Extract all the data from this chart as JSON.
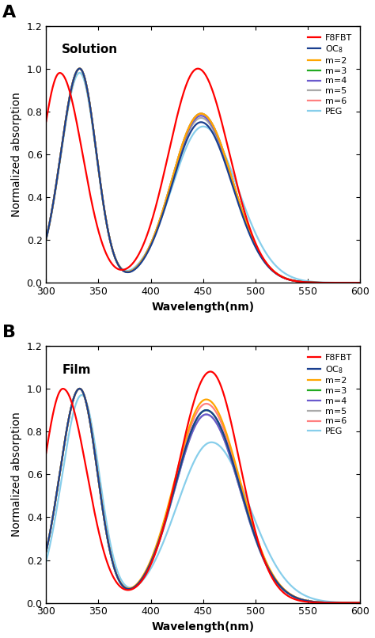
{
  "title_A": "Solution",
  "title_B": "Film",
  "label_A": "A",
  "label_B": "B",
  "xlabel": "Wavelength(nm)",
  "ylabel": "Normalized absorption",
  "xlim": [
    300,
    600
  ],
  "ylim": [
    0.0,
    1.2
  ],
  "yticks": [
    0.0,
    0.2,
    0.4,
    0.6,
    0.8,
    1.0,
    1.2
  ],
  "xticks": [
    300,
    350,
    400,
    450,
    500,
    550,
    600
  ],
  "colors": {
    "F8FBT": "#FF0000",
    "OC8": "#1A3F8F",
    "m2": "#FFA500",
    "m3": "#22AA22",
    "m4": "#6A5ACD",
    "m5": "#AAAAAA",
    "m6": "#FF8080",
    "PEG": "#87CEEB"
  },
  "linewidth": 1.6,
  "background_color": "#ffffff"
}
